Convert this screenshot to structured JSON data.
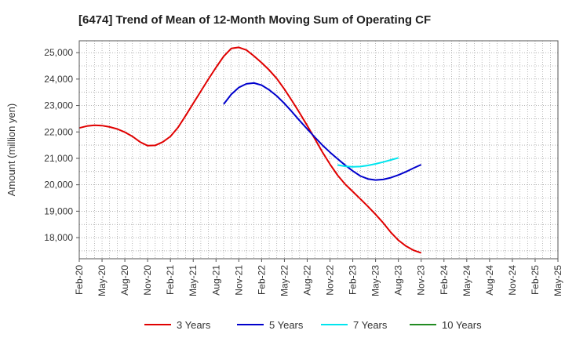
{
  "chart_data": {
    "type": "line",
    "title": "[6474]  Trend of Mean of 12-Month Moving Sum of Operating CF",
    "xlabel": "",
    "ylabel": "Amount (million yen)",
    "ylim": [
      17200,
      25450
    ],
    "yticks": [
      18000,
      19000,
      20000,
      21000,
      22000,
      23000,
      24000,
      25000
    ],
    "ytick_labels": [
      "18,000",
      "19,000",
      "20,000",
      "21,000",
      "22,000",
      "23,000",
      "24,000",
      "25,000"
    ],
    "x_start": "Feb-20",
    "x_months": 63,
    "xtick_labels": [
      "Feb-20",
      "May-20",
      "Aug-20",
      "Nov-20",
      "Feb-21",
      "May-21",
      "Aug-21",
      "Nov-21",
      "Feb-22",
      "May-22",
      "Aug-22",
      "Nov-22",
      "Feb-23",
      "May-23",
      "Aug-23",
      "Nov-23",
      "Feb-24",
      "May-24",
      "Aug-24",
      "Nov-24",
      "Feb-25",
      "May-25"
    ],
    "grid": true,
    "legend_position": "bottom",
    "series": [
      {
        "name": "3 Years",
        "color": "#e00000",
        "start_index": 0,
        "values": [
          22150,
          22220,
          22250,
          22240,
          22190,
          22110,
          21990,
          21830,
          21620,
          21480,
          21490,
          21620,
          21830,
          22170,
          22620,
          23080,
          23540,
          24000,
          24440,
          24860,
          25160,
          25200,
          25100,
          24870,
          24620,
          24340,
          24020,
          23620,
          23180,
          22720,
          22240,
          21740,
          21240,
          20780,
          20360,
          20020,
          19740,
          19460,
          19180,
          18880,
          18560,
          18200,
          17900,
          17680,
          17520,
          17420
        ]
      },
      {
        "name": "5 Years",
        "color": "#0000cc",
        "start_index": 19,
        "values": [
          23050,
          23420,
          23680,
          23820,
          23850,
          23770,
          23590,
          23360,
          23080,
          22760,
          22430,
          22110,
          21800,
          21500,
          21230,
          20980,
          20740,
          20520,
          20330,
          20220,
          20180,
          20200,
          20270,
          20370,
          20490,
          20630,
          20760
        ]
      },
      {
        "name": "7 Years",
        "color": "#00e5ee",
        "start_index": 34,
        "values": [
          20750,
          20700,
          20680,
          20690,
          20730,
          20790,
          20860,
          20940,
          21020
        ]
      },
      {
        "name": "10 Years",
        "color": "#228b22",
        "start_index": 0,
        "values": []
      }
    ]
  }
}
